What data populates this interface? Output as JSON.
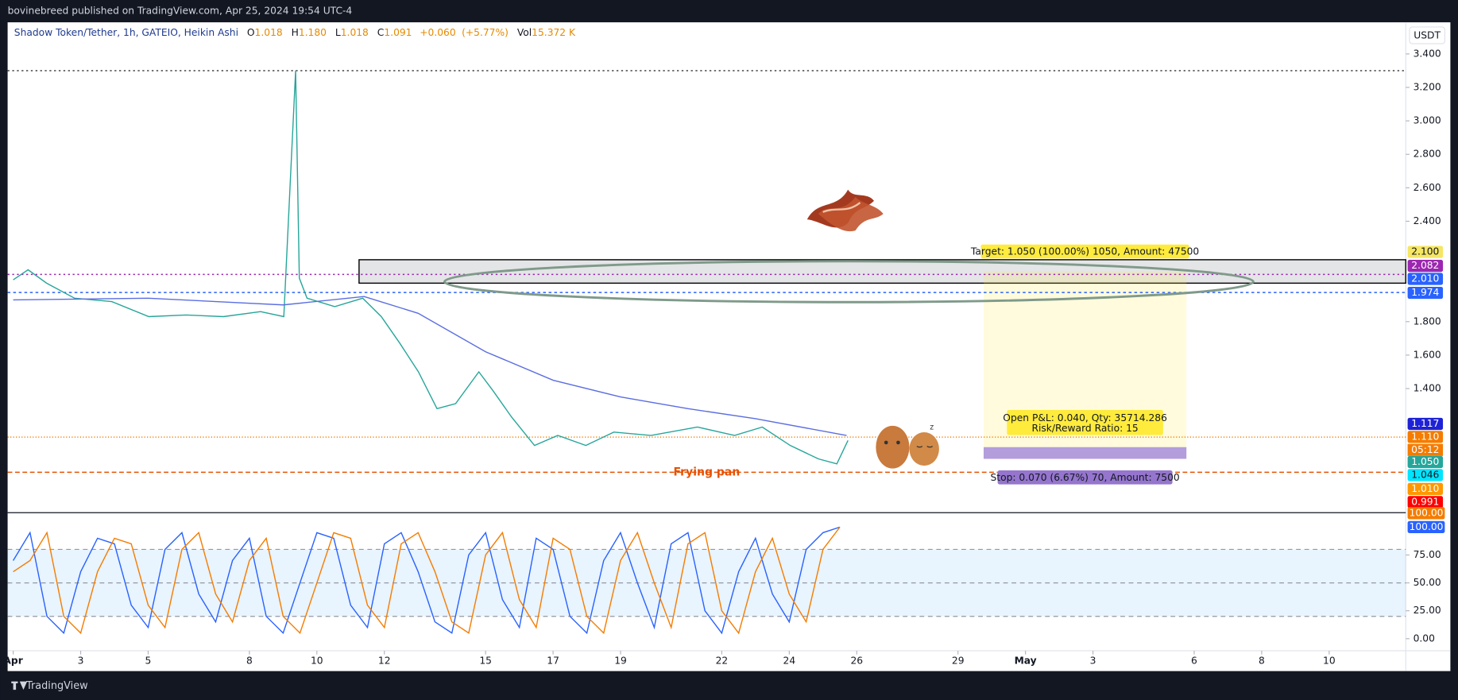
{
  "header": {
    "text": "bovinebreed published on TradingView.com, Apr 25, 2024 19:54 UTC-4"
  },
  "footer": {
    "brand": "TradingView"
  },
  "chart_data": [
    {
      "type": "line",
      "title": "Shadow Token/Tether, 1h, GATEIO, Heikin Ashi",
      "ohlc_letters": [
        "O",
        "H",
        "L",
        "C"
      ],
      "ohlc": [
        1.018,
        {
          "value": 1.18,
          "label": "1.180"
        },
        1.018,
        1.091
      ],
      "change": {
        "value": 0.06,
        "label": "+0.060"
      },
      "change_pct": {
        "value": 5.77,
        "label": "(+5.77%)"
      },
      "volume_label": "Vol",
      "volume": {
        "value": 15372,
        "label": "15.372 K"
      },
      "currency": "USDT",
      "xlim": [
        0.835,
        42.27
      ],
      "xticks": [
        {
          "value": 1,
          "label": "Apr"
        },
        3,
        5,
        8,
        10,
        12,
        15,
        17,
        19,
        22,
        24,
        26,
        29,
        {
          "value": 31,
          "label": "May"
        },
        {
          "value": 33,
          "label": "3"
        },
        {
          "value": 36,
          "label": "6"
        },
        {
          "value": 38,
          "label": "8"
        },
        {
          "value": 40,
          "label": "10"
        }
      ],
      "ylim": [
        0.661,
        3.589
      ],
      "yticks": [
        {
          "value": 3.4,
          "label": "3.400"
        },
        {
          "value": 3.2,
          "label": "3.200"
        },
        {
          "value": 3.0,
          "label": "3.000"
        },
        {
          "value": 2.8,
          "label": "2.800"
        },
        {
          "value": 2.6,
          "label": "2.600"
        },
        {
          "value": 2.4,
          "label": "2.400"
        },
        {
          "value": 1.8,
          "label": "1.800"
        },
        {
          "value": 1.6,
          "label": "1.600"
        },
        {
          "value": 1.4,
          "label": "1.400"
        }
      ],
      "series": [
        {
          "color": "#26a69a",
          "x": [
            1.0,
            1.44,
            1.99,
            2.82,
            3.92,
            5.02,
            6.12,
            7.23,
            8.33,
            9.02,
            9.37,
            9.48,
            9.71,
            10.53,
            11.36,
            11.91,
            12.46,
            13.01,
            13.56,
            14.11,
            14.8,
            15.21,
            15.77,
            16.45,
            17.14,
            17.97,
            18.8,
            19.9,
            21.28,
            22.38,
            23.2,
            24.03,
            24.86,
            25.41,
            25.74
          ],
          "values": [
            2.05,
            2.11,
            2.03,
            1.94,
            1.92,
            1.83,
            1.84,
            1.83,
            1.86,
            1.83,
            3.3,
            2.06,
            1.94,
            1.89,
            1.94,
            1.83,
            1.67,
            1.5,
            1.28,
            1.31,
            1.5,
            1.39,
            1.23,
            1.06,
            1.12,
            1.06,
            1.14,
            1.12,
            1.17,
            1.12,
            1.17,
            1.06,
            0.98,
            0.95,
            1.09
          ]
        },
        {
          "color": "#5b6ee1",
          "x": [
            1,
            5,
            9,
            11.4,
            13,
            15,
            17,
            19,
            21,
            23,
            25.7
          ],
          "values": [
            1.93,
            1.94,
            1.9,
            1.95,
            1.85,
            1.62,
            1.45,
            1.35,
            1.28,
            1.22,
            1.12
          ]
        }
      ],
      "hlines": [
        {
          "value": 3.3,
          "color": "#555555",
          "dash": "2 3"
        },
        {
          "value": 2.082,
          "color": "#9c27b0",
          "dash": "2 3"
        },
        {
          "value": 1.974,
          "color": "#2962ff",
          "dash": "3 3"
        },
        {
          "value": 1.11,
          "color": "#f57c00",
          "dash": "1 2"
        },
        {
          "value": 0.9,
          "color": "#e65100",
          "dash": "5 3"
        }
      ],
      "zone": {
        "from": 11.25,
        "low": 2.03,
        "high": 2.17
      },
      "position": {
        "x": [
          29.76,
          35.77
        ],
        "entry": 1.05,
        "target": 2.1,
        "stop": 0.98
      },
      "target_label": "Target: 1.050 (100.00%) 1050, Amount: 47500",
      "pnl_label": "Open P&L: 0.040, Qty: 35714.286",
      "rr_label": "Risk/Reward Ratio: 15",
      "stop_label": "Stop: 0.070 (6.67%) 70, Amount: 7500",
      "annotation": "Frying pan",
      "countdown": "05:12",
      "price_tags": [
        {
          "value": 2.1,
          "label": "2.100",
          "color": "#f5e663"
        },
        {
          "value": 2.082,
          "label": "2.082",
          "color": "#9c27b0"
        },
        {
          "value": 2.01,
          "label": "2.010",
          "color": "#2962ff"
        },
        {
          "value": 1.974,
          "label": "1.974",
          "color": "#2962ff"
        },
        {
          "value": 1.117,
          "label": "1.117",
          "color": "#1e22d6"
        },
        {
          "value": 1.11,
          "label": "1.110",
          "color": "#f57c00"
        },
        {
          "value": 1.05,
          "label": "1.050",
          "color": "#26a69a"
        },
        {
          "value": 1.046,
          "label": "1.046",
          "color": "#00e5ff"
        },
        {
          "value": 1.01,
          "label": "1.010",
          "color": "#ff9800"
        },
        {
          "value": 0.991,
          "label": "0.991",
          "color": "#ff0000"
        }
      ]
    },
    {
      "type": "line",
      "xlim": [
        0.835,
        42.27
      ],
      "ylim": [
        -10.8,
        112.5
      ],
      "yticks": [
        {
          "value": 75,
          "label": "75.00"
        },
        {
          "value": 50,
          "label": "50.00"
        },
        {
          "value": 25,
          "label": "25.00"
        },
        {
          "value": 0,
          "label": "0.00"
        }
      ],
      "bands": [
        20,
        50,
        80
      ],
      "series": [
        {
          "color": "#2962ff",
          "x": [
            1,
            1.5,
            2,
            2.5,
            3,
            3.5,
            4,
            4.5,
            5,
            5.5,
            6,
            6.5,
            7,
            7.5,
            8,
            8.5,
            9,
            9.5,
            10,
            10.5,
            11,
            11.5,
            12,
            12.5,
            13,
            13.5,
            14,
            14.5,
            15,
            15.5,
            16,
            16.5,
            17,
            17.5,
            18,
            18.5,
            19,
            19.5,
            20,
            20.5,
            21,
            21.5,
            22,
            22.5,
            23,
            23.5,
            24,
            24.5,
            25,
            25.5
          ],
          "values": [
            70,
            95,
            20,
            5,
            60,
            90,
            85,
            30,
            10,
            80,
            95,
            40,
            15,
            70,
            90,
            20,
            5,
            50,
            95,
            90,
            30,
            10,
            85,
            95,
            60,
            15,
            5,
            75,
            95,
            35,
            10,
            90,
            80,
            20,
            5,
            70,
            95,
            50,
            10,
            85,
            95,
            25,
            5,
            60,
            90,
            40,
            15,
            80,
            95,
            100
          ]
        },
        {
          "color": "#f57c00",
          "x": [
            1,
            1.5,
            2,
            2.5,
            3,
            3.5,
            4,
            4.5,
            5,
            5.5,
            6,
            6.5,
            7,
            7.5,
            8,
            8.5,
            9,
            9.5,
            10,
            10.5,
            11,
            11.5,
            12,
            12.5,
            13,
            13.5,
            14,
            14.5,
            15,
            15.5,
            16,
            16.5,
            17,
            17.5,
            18,
            18.5,
            19,
            19.5,
            20,
            20.5,
            21,
            21.5,
            22,
            22.5,
            23,
            23.5,
            24,
            24.5,
            25,
            25.5
          ],
          "values": [
            60,
            70,
            95,
            20,
            5,
            60,
            90,
            85,
            30,
            10,
            80,
            95,
            40,
            15,
            70,
            90,
            20,
            5,
            50,
            95,
            90,
            30,
            10,
            85,
            95,
            60,
            15,
            5,
            75,
            95,
            35,
            10,
            90,
            80,
            20,
            5,
            70,
            95,
            50,
            10,
            85,
            95,
            25,
            5,
            60,
            90,
            40,
            15,
            80,
            100
          ]
        }
      ],
      "price_tags": [
        {
          "value": 100,
          "label": "100.00",
          "color": "#f57c00"
        },
        {
          "value": 100,
          "label": "100.00",
          "color": "#2962ff"
        }
      ]
    }
  ]
}
